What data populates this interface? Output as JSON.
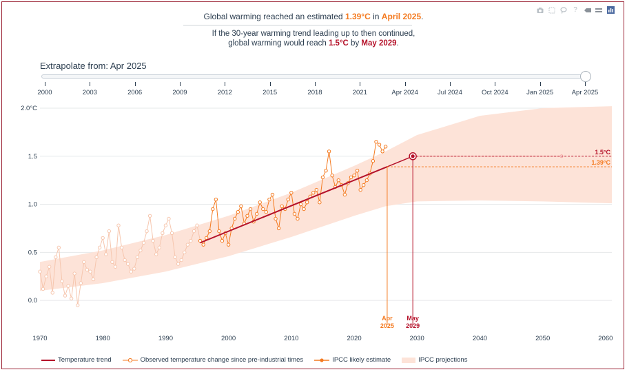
{
  "headline": {
    "prefix": "Global warming reached an estimated ",
    "value": "1.39°C",
    "middle": " in ",
    "date": "April 2025",
    "suffix": "."
  },
  "subline": {
    "line1": "If the 30-year warming trend leading up to then continued,",
    "line2_prefix": "global warming would reach ",
    "target": "1.5°C",
    "middle": " by ",
    "date": "May 2029",
    "suffix": "."
  },
  "slider": {
    "label": "Extrapolate from: ",
    "value": "Apr 2025",
    "ticks": [
      "2000",
      "2003",
      "2006",
      "2009",
      "2012",
      "2015",
      "2018",
      "2021",
      "Apr 2024",
      "Jul 2024",
      "Oct 2024",
      "Jan 2025",
      "Apr 2025"
    ]
  },
  "modebar": [
    "camera-icon",
    "box-select-icon",
    "lasso-icon",
    "help-icon",
    "toggle-icon",
    "plotly-logo-icon"
  ],
  "colors": {
    "trend": "#b5122a",
    "observed": "#f47a20",
    "early_observed": "#f6c6ae",
    "band": "#fde3d8",
    "grid": "#e6e8ea"
  },
  "chart_data": {
    "type": "line",
    "xlim": [
      1970,
      2061
    ],
    "ylim": [
      -0.25,
      2.05
    ],
    "xticks": [
      1970,
      1980,
      1990,
      2000,
      2010,
      2020,
      2030,
      2040,
      2050,
      2060
    ],
    "yticks": [
      {
        "value": 0,
        "label": "0.0"
      },
      {
        "value": 0.5,
        "label": "0.5"
      },
      {
        "value": 1.0,
        "label": "1.0"
      },
      {
        "value": 1.5,
        "label": "1.5"
      },
      {
        "value": 2.0,
        "label": "2.0°C"
      }
    ],
    "grid": true,
    "series": [
      {
        "name": "Observed temperature change since pre-industrial times",
        "x": [
          1970.0,
          1970.5,
          1971.0,
          1971.5,
          1972.0,
          1972.5,
          1973.0,
          1973.5,
          1974.0,
          1974.5,
          1975.0,
          1975.5,
          1976.0,
          1976.5,
          1977.0,
          1977.5,
          1978.0,
          1978.5,
          1979.0,
          1979.5,
          1980.0,
          1980.5,
          1981.0,
          1981.5,
          1982.0,
          1982.5,
          1983.0,
          1983.5,
          1984.0,
          1984.5,
          1985.0,
          1985.5,
          1986.0,
          1986.5,
          1987.0,
          1987.5,
          1988.0,
          1988.5,
          1989.0,
          1989.5,
          1990.0,
          1990.5,
          1991.0,
          1991.5,
          1992.0,
          1992.5,
          1993.0,
          1993.5,
          1994.0,
          1994.5,
          1995.0,
          1995.5,
          1996.0,
          1996.5,
          1997.0,
          1997.5,
          1998.0,
          1998.5,
          1999.0,
          1999.5,
          2000.0,
          2000.5,
          2001.0,
          2001.5,
          2002.0,
          2002.5,
          2003.0,
          2003.5,
          2004.0,
          2004.5,
          2005.0,
          2005.5,
          2006.0,
          2006.5,
          2007.0,
          2007.5,
          2008.0,
          2008.5,
          2009.0,
          2009.5,
          2010.0,
          2010.5,
          2011.0,
          2011.5,
          2012.0,
          2012.5,
          2013.0,
          2013.5,
          2014.0,
          2014.5,
          2015.0,
          2015.5,
          2016.0,
          2016.5,
          2017.0,
          2017.5,
          2018.0,
          2018.5,
          2019.0,
          2019.5,
          2020.0,
          2020.5,
          2021.0,
          2021.5,
          2022.0,
          2022.5,
          2023.0,
          2023.5,
          2024.0,
          2024.5,
          2025.0
        ],
        "y": [
          0.3,
          0.12,
          0.25,
          0.35,
          0.08,
          0.45,
          0.55,
          0.2,
          0.05,
          0.15,
          0.02,
          0.28,
          -0.05,
          0.18,
          0.4,
          0.32,
          0.3,
          0.22,
          0.45,
          0.55,
          0.65,
          0.48,
          0.72,
          0.4,
          0.35,
          0.78,
          0.55,
          0.42,
          0.38,
          0.3,
          0.33,
          0.45,
          0.52,
          0.6,
          0.72,
          0.88,
          0.62,
          0.48,
          0.55,
          0.7,
          0.78,
          0.85,
          0.7,
          0.45,
          0.38,
          0.42,
          0.5,
          0.58,
          0.62,
          0.72,
          0.78,
          0.62,
          0.58,
          0.65,
          0.72,
          0.95,
          1.05,
          0.72,
          0.62,
          0.7,
          0.58,
          0.75,
          0.85,
          0.92,
          0.98,
          0.8,
          0.88,
          0.95,
          0.82,
          0.9,
          1.02,
          0.95,
          0.92,
          1.05,
          1.1,
          0.85,
          0.75,
          0.98,
          0.95,
          1.05,
          1.12,
          0.9,
          0.85,
          1.0,
          0.95,
          1.02,
          1.08,
          1.12,
          1.15,
          1.02,
          1.28,
          1.35,
          1.55,
          1.3,
          1.18,
          1.25,
          1.2,
          1.1,
          1.22,
          1.28,
          1.3,
          1.35,
          1.15,
          1.2,
          1.25,
          1.32,
          1.45,
          1.65,
          1.62,
          1.55,
          1.6
        ]
      },
      {
        "name": "Temperature trend",
        "x": [
          1995.5,
          2025.25
        ],
        "y": [
          0.6,
          1.39
        ]
      },
      {
        "name": "IPCC likely estimate",
        "x": [
          2025.25,
          2029.33,
          2053
        ],
        "y": [
          1.39,
          1.5,
          1.5
        ]
      },
      {
        "name": "IPCC projections",
        "x": [
          1970,
          1980,
          1990,
          2000,
          2010,
          2020,
          2025,
          2030,
          2040,
          2050,
          2061
        ],
        "upper": [
          0.4,
          0.52,
          0.68,
          0.88,
          1.12,
          1.4,
          1.55,
          1.72,
          1.92,
          2.0,
          2.02
        ],
        "lower": [
          0.1,
          0.18,
          0.3,
          0.46,
          0.66,
          0.88,
          0.98,
          1.03,
          1.04,
          1.03,
          1.01
        ]
      }
    ],
    "markers": [
      {
        "x": 2025.25,
        "y": 1.39,
        "label_line1": "Apr",
        "label_line2": "2025",
        "color": "#f47a20"
      },
      {
        "x": 2029.33,
        "y": 1.5,
        "label_line1": "May",
        "label_line2": "2029",
        "color": "#b5122a"
      }
    ],
    "hlines": [
      {
        "y": 1.5,
        "label": "1.5°C",
        "color": "#b5122a"
      },
      {
        "y": 1.39,
        "label": "1.39°C",
        "color": "#f47a20"
      }
    ]
  },
  "legend": [
    {
      "key": "trend",
      "label": "Temperature trend"
    },
    {
      "key": "observed",
      "label": "Observed temperature change since pre-industrial times"
    },
    {
      "key": "ipcc-estimate",
      "label": "IPCC likely estimate"
    },
    {
      "key": "ipcc-projections",
      "label": "IPCC projections"
    }
  ]
}
